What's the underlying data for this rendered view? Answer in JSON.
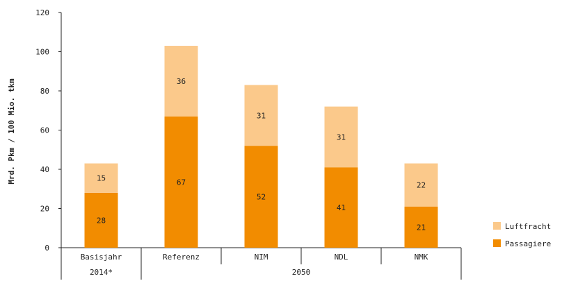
{
  "chart_data": {
    "type": "bar",
    "stacked": true,
    "categories": [
      "Basisjahr",
      "Referenz",
      "NIM",
      "NDL",
      "NMK"
    ],
    "groups": [
      {
        "label": "2014*",
        "categories": [
          "Basisjahr"
        ]
      },
      {
        "label": "2050",
        "categories": [
          "Referenz",
          "NIM",
          "NDL",
          "NMK"
        ]
      }
    ],
    "series": [
      {
        "name": "Passagiere",
        "color": "#f28c00",
        "values": [
          28,
          67,
          52,
          41,
          21
        ]
      },
      {
        "name": "Luftfracht",
        "color": "#fbc98b",
        "values": [
          15,
          36,
          31,
          31,
          22
        ]
      }
    ],
    "ylabel": "Mrd. Pkm / 100 Mio. tkm",
    "xlabel": "",
    "ylim": [
      0,
      120
    ],
    "yticks": [
      0,
      20,
      40,
      60,
      80,
      100,
      120
    ],
    "grid": false,
    "legend": {
      "position": "right",
      "order": [
        "Luftfracht",
        "Passagiere"
      ]
    }
  }
}
